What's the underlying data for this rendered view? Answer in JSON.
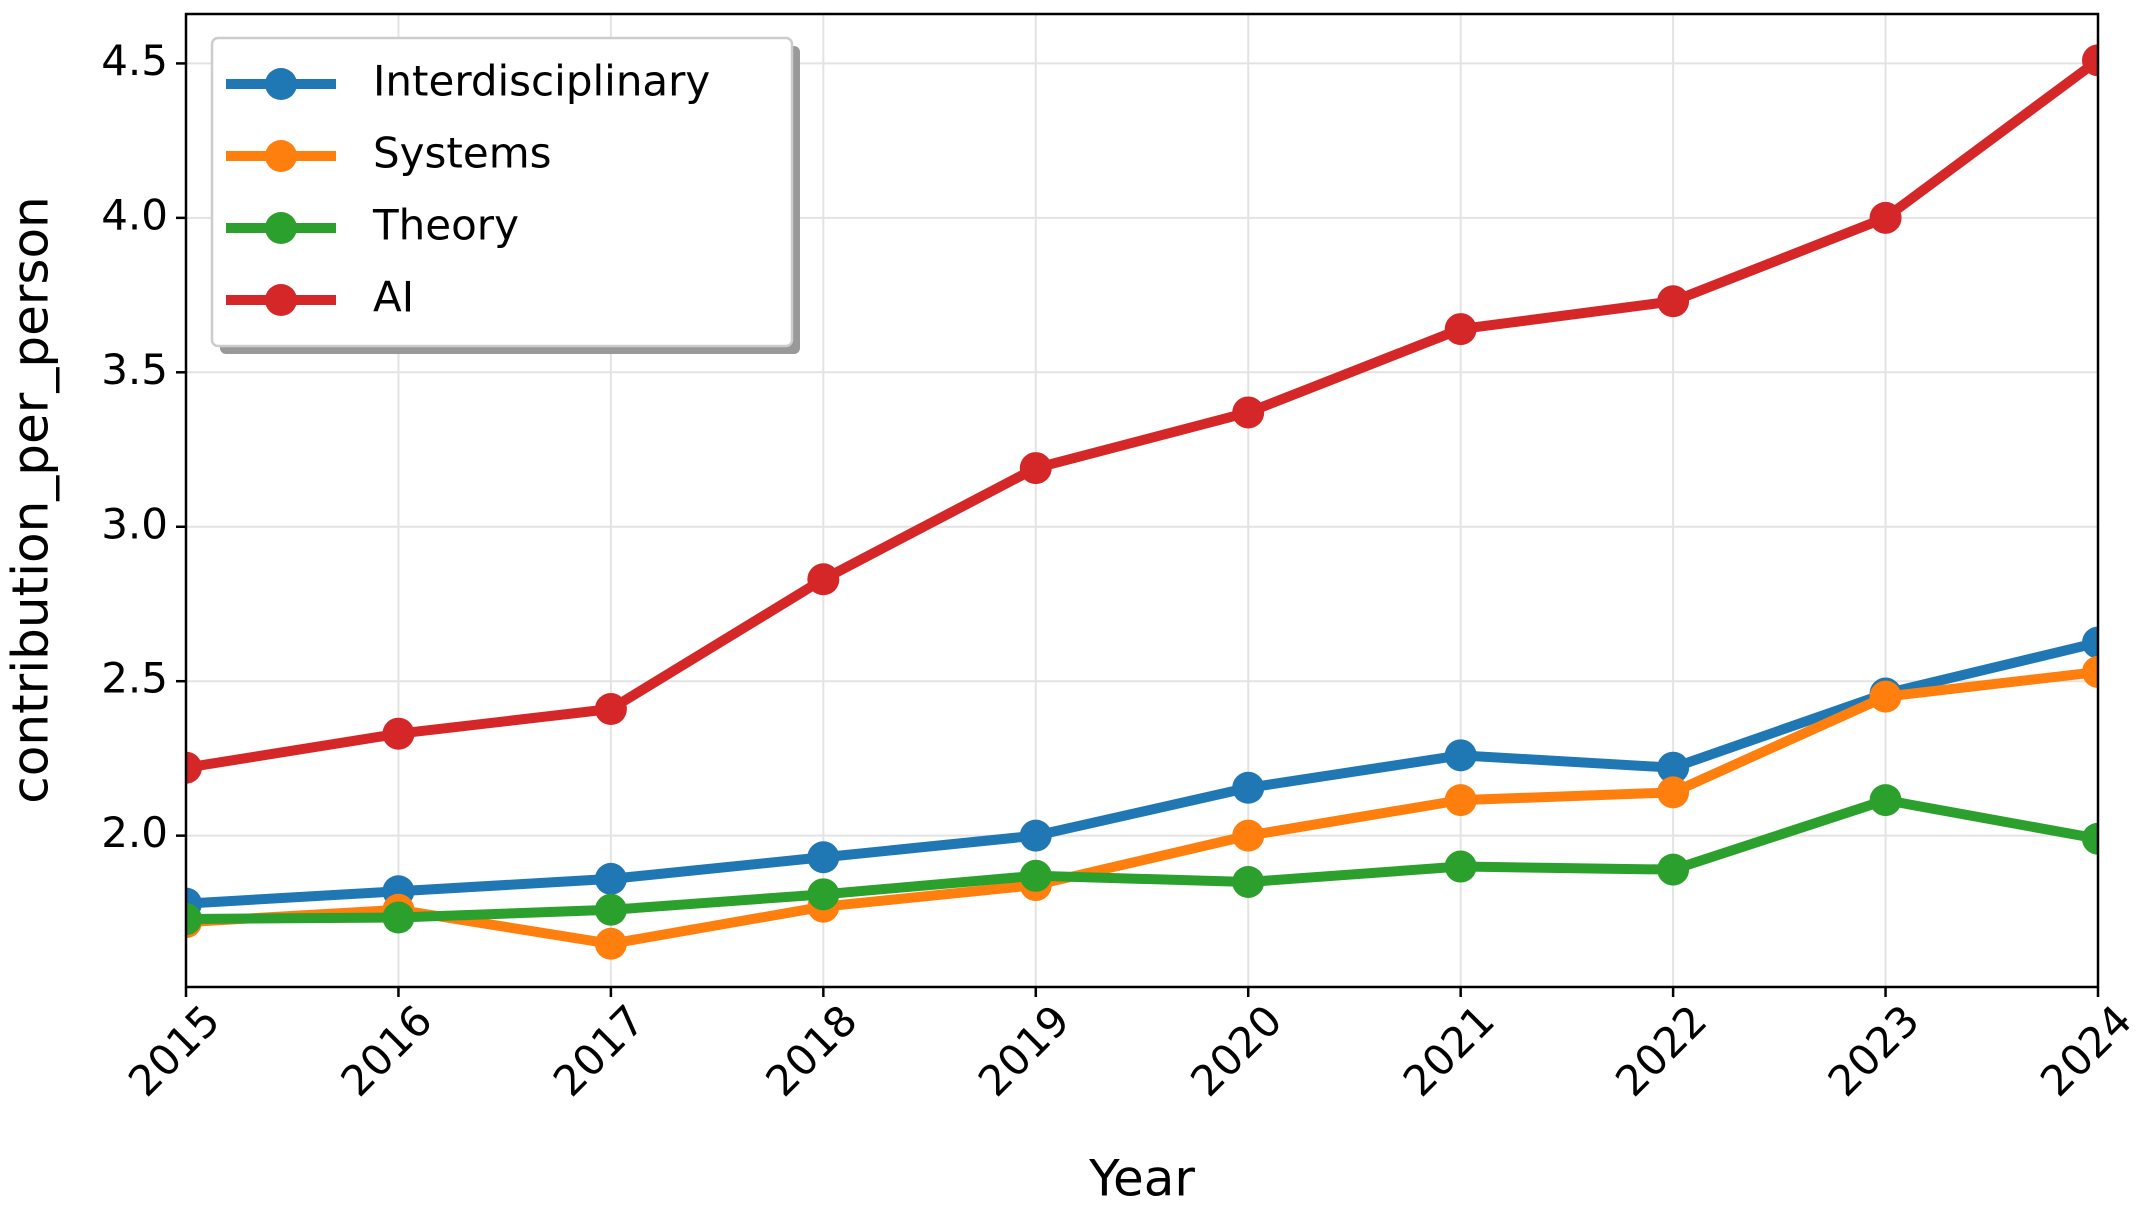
{
  "chart_data": {
    "type": "line",
    "x_label": "Year",
    "y_label": "contribution_per_person",
    "x": [
      2015,
      2016,
      2017,
      2018,
      2019,
      2020,
      2021,
      2022,
      2023,
      2024
    ],
    "series": [
      {
        "name": "Interdisciplinary",
        "color": "#1f77b4",
        "values": [
          1.78,
          1.82,
          1.86,
          1.93,
          2.0,
          2.155,
          2.26,
          2.22,
          2.46,
          2.625
        ]
      },
      {
        "name": "Systems",
        "color": "#ff7f0e",
        "values": [
          1.72,
          1.76,
          1.65,
          1.77,
          1.84,
          2.0,
          2.115,
          2.14,
          2.45,
          2.53
        ]
      },
      {
        "name": "Theory",
        "color": "#2ca02c",
        "values": [
          1.73,
          1.735,
          1.76,
          1.81,
          1.87,
          1.85,
          1.9,
          1.89,
          2.115,
          1.99
        ]
      },
      {
        "name": "AI",
        "color": "#d62728",
        "values": [
          2.22,
          2.33,
          2.41,
          2.83,
          3.19,
          3.37,
          3.64,
          3.73,
          4.0,
          4.51
        ]
      }
    ],
    "xlim": [
      2015,
      2024
    ],
    "xticks": [
      2015,
      2016,
      2017,
      2018,
      2019,
      2020,
      2021,
      2022,
      2023,
      2024
    ],
    "ylim": [
      1.51,
      4.66
    ],
    "yticks": [
      {
        "value": 2,
        "label": "2.0"
      },
      2.5,
      {
        "value": 3,
        "label": "3.0"
      },
      3.5,
      {
        "value": 4,
        "label": "4.0"
      },
      4.5
    ],
    "grid": true,
    "legend": "upper left"
  }
}
